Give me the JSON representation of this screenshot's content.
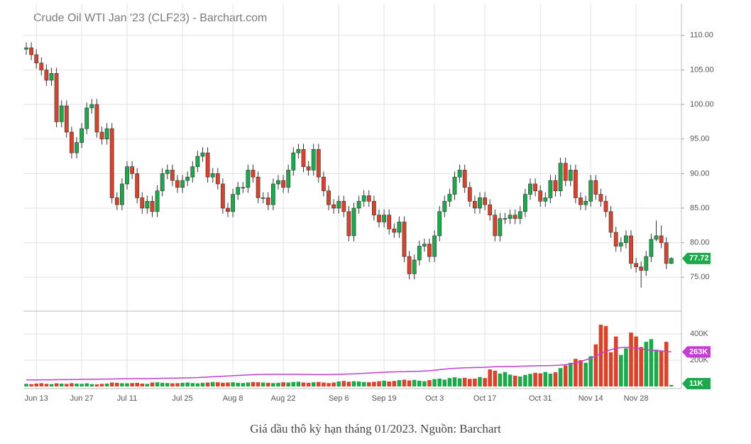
{
  "chart_data": {
    "type": "candlestick",
    "title": "Crude Oil WTI Jan '23 (CLF23) - Barchart.com",
    "categories": [
      null,
      null,
      "Jun 13",
      null,
      null,
      null,
      null,
      null,
      null,
      null,
      null,
      "Jun 27",
      null,
      null,
      null,
      null,
      null,
      null,
      null,
      null,
      "Jul 11",
      null,
      null,
      null,
      null,
      null,
      null,
      null,
      null,
      null,
      null,
      "Jul 25",
      null,
      null,
      null,
      null,
      null,
      null,
      null,
      null,
      null,
      "Aug 8",
      null,
      null,
      null,
      null,
      null,
      null,
      null,
      null,
      null,
      "Aug 22",
      null,
      null,
      null,
      null,
      null,
      null,
      null,
      null,
      null,
      null,
      "Sep 6",
      null,
      null,
      null,
      null,
      null,
      null,
      null,
      null,
      "Sep 19",
      null,
      null,
      null,
      null,
      null,
      null,
      null,
      null,
      null,
      "Oct 3",
      null,
      null,
      null,
      null,
      null,
      null,
      null,
      null,
      null,
      "Oct 17",
      null,
      null,
      null,
      null,
      null,
      null,
      null,
      null,
      null,
      null,
      "Oct 31",
      null,
      null,
      null,
      null,
      null,
      null,
      null,
      null,
      null,
      "Nov 14",
      null,
      null,
      null,
      null,
      null,
      null,
      null,
      null,
      "Nov 28",
      null,
      null,
      null,
      null,
      null,
      null,
      null
    ],
    "open": [
      108.0,
      108.2,
      107.2,
      106.0,
      105.0,
      103.5,
      104.5,
      97.5,
      99.8,
      96.0,
      93.0,
      94.5,
      96.5,
      99.5,
      100.0,
      96.0,
      95.0,
      96.5,
      86.5,
      85.5,
      88.5,
      91.0,
      90.0,
      86.5,
      85.0,
      86.0,
      84.5,
      87.5,
      90.0,
      90.5,
      89.0,
      88.0,
      89.0,
      89.5,
      91.0,
      92.5,
      93.0,
      89.5,
      90.0,
      88.5,
      85.0,
      84.5,
      87.0,
      88.0,
      88.0,
      90.5,
      89.5,
      86.5,
      86.5,
      85.5,
      88.5,
      89.0,
      88.0,
      90.5,
      93.0,
      93.5,
      91.0,
      90.5,
      93.5,
      89.5,
      87.5,
      85.5,
      85.0,
      86.0,
      84.5,
      81.0,
      85.0,
      86.0,
      86.8,
      86.0,
      84.0,
      83.0,
      84.0,
      82.0,
      81.5,
      83.0,
      78.0,
      75.5,
      77.5,
      79.5,
      79.8,
      78.0,
      81.0,
      84.5,
      86.0,
      87.0,
      89.5,
      90.5,
      88.0,
      86.0,
      85.0,
      86.5,
      85.5,
      84.0,
      81.0,
      83.5,
      83.5,
      84.0,
      83.5,
      84.5,
      87.0,
      88.5,
      87.5,
      86.0,
      86.5,
      89.0,
      87.5,
      91.5,
      89.0,
      90.5,
      86.5,
      85.5,
      86.0,
      89.0,
      87.0,
      86.0,
      84.5,
      81.5,
      79.5,
      80.0,
      81.0,
      77.0,
      76.5,
      76.0,
      78.0,
      80.5,
      81.0,
      80.0,
      77.0
    ],
    "high": [
      109.0,
      109.0,
      108.0,
      106.8,
      105.8,
      105.3,
      105.3,
      100.6,
      100.6,
      96.8,
      95.3,
      97.3,
      100.3,
      100.8,
      100.8,
      96.8,
      97.3,
      97.3,
      87.3,
      89.3,
      91.8,
      91.8,
      90.8,
      87.3,
      86.8,
      86.8,
      88.3,
      90.8,
      91.3,
      91.3,
      89.8,
      89.8,
      90.3,
      91.8,
      93.3,
      93.8,
      93.8,
      90.8,
      90.8,
      89.3,
      85.8,
      87.8,
      88.8,
      88.8,
      91.3,
      91.3,
      90.3,
      87.3,
      87.3,
      89.3,
      89.8,
      89.8,
      91.3,
      93.8,
      94.3,
      94.3,
      91.8,
      94.3,
      94.3,
      90.3,
      88.3,
      86.3,
      86.8,
      86.8,
      85.3,
      85.8,
      86.8,
      87.6,
      87.6,
      86.8,
      84.8,
      84.8,
      84.8,
      82.8,
      83.8,
      83.8,
      78.8,
      78.3,
      80.3,
      80.6,
      80.6,
      81.8,
      85.3,
      86.8,
      87.8,
      90.3,
      91.3,
      91.3,
      88.8,
      86.8,
      87.3,
      87.3,
      86.3,
      84.8,
      84.3,
      84.3,
      84.8,
      84.8,
      85.3,
      87.8,
      89.3,
      89.3,
      88.3,
      87.3,
      89.8,
      89.8,
      92.3,
      92.3,
      91.3,
      91.3,
      87.3,
      86.8,
      89.8,
      89.8,
      87.8,
      86.8,
      85.3,
      82.3,
      80.8,
      81.8,
      81.8,
      77.8,
      77.3,
      78.8,
      81.3,
      83.2,
      82.5,
      80.8,
      77.9
    ],
    "low": [
      107.2,
      106.4,
      105.2,
      104.2,
      102.7,
      102.7,
      96.7,
      96.7,
      95.2,
      92.2,
      92.2,
      93.7,
      95.7,
      98.7,
      95.2,
      94.2,
      94.2,
      85.7,
      84.7,
      84.7,
      87.7,
      89.2,
      85.7,
      84.2,
      84.2,
      83.7,
      83.7,
      86.7,
      89.2,
      88.2,
      87.2,
      87.2,
      88.2,
      88.7,
      90.2,
      91.7,
      88.7,
      88.7,
      87.7,
      84.2,
      83.7,
      83.7,
      86.2,
      87.2,
      87.2,
      88.7,
      85.7,
      85.7,
      84.7,
      84.7,
      87.7,
      87.2,
      87.2,
      89.7,
      92.2,
      90.2,
      89.7,
      89.7,
      88.7,
      86.7,
      84.7,
      84.2,
      84.2,
      83.7,
      80.2,
      80.2,
      84.2,
      85.2,
      85.2,
      83.2,
      82.2,
      82.2,
      81.2,
      80.7,
      80.7,
      77.2,
      74.7,
      74.7,
      76.7,
      78.7,
      77.2,
      77.2,
      80.2,
      83.7,
      85.2,
      86.2,
      88.7,
      87.2,
      85.2,
      84.2,
      84.2,
      84.7,
      83.2,
      80.2,
      80.2,
      82.7,
      82.7,
      82.7,
      82.7,
      83.7,
      86.2,
      86.7,
      85.2,
      85.2,
      85.7,
      86.7,
      86.7,
      88.2,
      88.2,
      85.7,
      84.7,
      84.7,
      85.2,
      86.2,
      85.2,
      83.7,
      80.7,
      78.7,
      78.7,
      79.2,
      76.2,
      75.7,
      73.5,
      75.2,
      77.2,
      80.2,
      79.2,
      76.2,
      76.9
    ],
    "close": [
      108.2,
      107.2,
      106.0,
      105.0,
      103.5,
      104.5,
      97.5,
      99.8,
      96.0,
      93.0,
      94.5,
      96.5,
      99.5,
      100.0,
      96.0,
      95.0,
      96.5,
      86.5,
      85.5,
      88.5,
      91.0,
      90.0,
      86.5,
      85.0,
      86.0,
      84.5,
      87.5,
      90.0,
      90.5,
      89.0,
      88.0,
      89.0,
      89.5,
      91.0,
      92.5,
      93.0,
      89.5,
      90.0,
      88.5,
      85.0,
      84.5,
      87.0,
      88.0,
      88.0,
      90.5,
      89.5,
      86.5,
      86.5,
      85.5,
      88.5,
      89.0,
      88.0,
      90.5,
      93.0,
      93.5,
      91.0,
      90.5,
      93.5,
      89.5,
      87.5,
      85.5,
      85.0,
      86.0,
      84.5,
      81.0,
      85.0,
      86.0,
      86.8,
      86.0,
      84.0,
      83.0,
      84.0,
      82.0,
      81.5,
      83.0,
      78.0,
      75.5,
      77.5,
      79.5,
      79.8,
      78.0,
      81.0,
      84.5,
      86.0,
      87.0,
      89.5,
      90.5,
      88.0,
      86.0,
      85.0,
      86.5,
      85.5,
      84.0,
      81.0,
      83.5,
      83.5,
      84.0,
      83.5,
      84.5,
      87.0,
      88.5,
      87.5,
      86.0,
      86.5,
      89.0,
      87.5,
      91.5,
      89.0,
      90.5,
      86.5,
      85.5,
      86.0,
      89.0,
      87.0,
      86.0,
      84.5,
      81.5,
      79.5,
      80.0,
      81.0,
      77.0,
      76.5,
      76.0,
      78.0,
      80.5,
      81.0,
      80.0,
      77.0,
      77.72
    ],
    "up_color": "#1ea84c",
    "down_color": "#d9432c",
    "ylim": [
      70.2,
      114.6
    ],
    "yticks": [
      {
        "value": 75,
        "label": "75.00"
      },
      {
        "value": 80,
        "label": "80.00"
      },
      {
        "value": 85,
        "label": "85.00"
      },
      {
        "value": 90,
        "label": "90.00"
      },
      {
        "value": 95,
        "label": "95.00"
      },
      {
        "value": 100,
        "label": "100.00"
      },
      {
        "value": 105,
        "label": "105.00"
      },
      {
        "value": 110,
        "label": "110.00"
      }
    ],
    "grid": true,
    "volume": {
      "values": [
        20000,
        18000,
        22000,
        25000,
        20000,
        18000,
        24000,
        22000,
        20000,
        25000,
        22000,
        20000,
        24000,
        18000,
        16000,
        20000,
        22000,
        30000,
        28000,
        25000,
        24000,
        26000,
        28000,
        22000,
        20000,
        30000,
        32000,
        28000,
        26000,
        24000,
        25000,
        28000,
        30000,
        26000,
        24000,
        28000,
        30000,
        34000,
        32000,
        28000,
        30000,
        32000,
        28000,
        26000,
        30000,
        34000,
        32000,
        30000,
        28000,
        26000,
        28000,
        32000,
        30000,
        34000,
        36000,
        30000,
        28000,
        32000,
        34000,
        30000,
        26000,
        30000,
        38000,
        42000,
        36000,
        40000,
        38000,
        34000,
        32000,
        36000,
        40000,
        44000,
        38000,
        42000,
        48000,
        52000,
        46000,
        50000,
        44000,
        40000,
        48000,
        56000,
        60000,
        52000,
        64000,
        70000,
        62000,
        66000,
        58000,
        60000,
        72000,
        64000,
        130000,
        120000,
        98000,
        110000,
        90000,
        82000,
        76000,
        88000,
        96000,
        104000,
        100000,
        110000,
        98000,
        108000,
        140000,
        160000,
        180000,
        210000,
        200000,
        180000,
        230000,
        320000,
        470000,
        460000,
        260000,
        380000,
        240000,
        290000,
        410000,
        380000,
        300000,
        340000,
        360000,
        280000,
        270000,
        340000,
        11000
      ],
      "last_label": "11K",
      "ylim": [
        -16000,
        562000
      ],
      "yticks": [
        {
          "value": 200000,
          "label": "200K"
        },
        {
          "value": 400000,
          "label": "400K"
        }
      ]
    },
    "ma": {
      "color": "#c23fd2",
      "values": [
        50000,
        50000,
        50000,
        51000,
        51000,
        51000,
        52000,
        52000,
        52000,
        53000,
        53000,
        54000,
        54000,
        55000,
        55000,
        56000,
        56000,
        57000,
        58000,
        58000,
        59000,
        59000,
        60000,
        60000,
        60000,
        61000,
        61000,
        62000,
        62000,
        63000,
        64000,
        65000,
        66000,
        67000,
        68000,
        70000,
        72000,
        74000,
        76000,
        78000,
        80000,
        82000,
        84000,
        86000,
        88000,
        90000,
        91000,
        92000,
        92000,
        93000,
        93000,
        93000,
        93000,
        93000,
        93000,
        92000,
        92000,
        91000,
        91000,
        91000,
        91000,
        92000,
        93000,
        94000,
        95000,
        96000,
        98000,
        100000,
        102000,
        104000,
        106000,
        108000,
        110000,
        111000,
        112000,
        113000,
        114000,
        115000,
        116000,
        118000,
        120000,
        124000,
        128000,
        132000,
        136000,
        138000,
        140000,
        142000,
        143000,
        144000,
        145000,
        146000,
        148000,
        150000,
        151000,
        152000,
        153000,
        153000,
        154000,
        155000,
        156000,
        157000,
        158000,
        158000,
        159000,
        160000,
        162000,
        166000,
        172000,
        180000,
        190000,
        202000,
        216000,
        232000,
        250000,
        266000,
        280000,
        290000,
        296000,
        298000,
        295000,
        290000,
        285000,
        280000,
        276000,
        272000,
        270000,
        266000,
        263000
      ],
      "last_label": "263K"
    }
  },
  "caption": "Giá dầu thô kỳ hạn tháng 01/2023. Nguồn: Barchart"
}
